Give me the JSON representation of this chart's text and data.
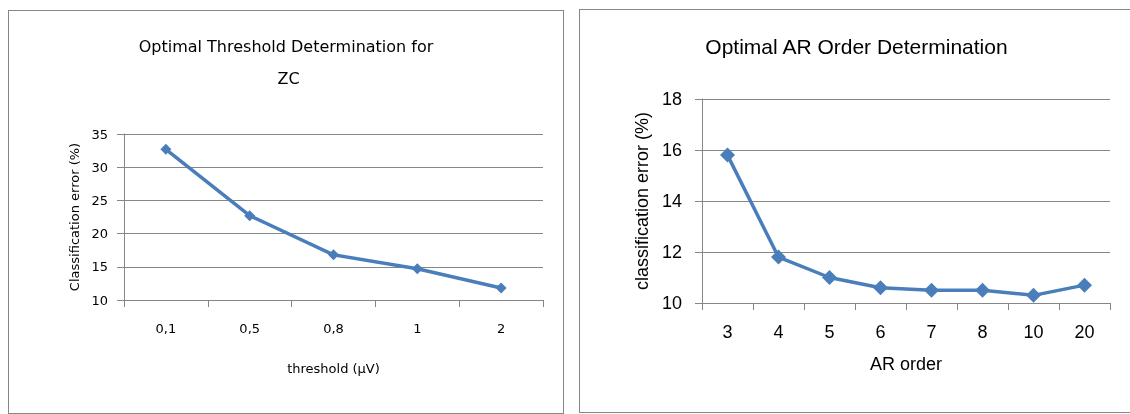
{
  "chart_data": [
    {
      "type": "line",
      "title": "Optimal Threshold Determination for ZC",
      "xlabel": "threshold (µV)",
      "ylabel": "Classification error (%)",
      "categories": [
        "0,1",
        "0,5",
        "0,8",
        "1",
        "2"
      ],
      "series": [
        {
          "color": "#4a7ebb",
          "values": [
            32.7,
            22.7,
            16.8,
            14.7,
            11.8
          ]
        }
      ],
      "ylim": [
        10,
        35
      ],
      "yticks": [
        10,
        15,
        20,
        25,
        30,
        35
      ],
      "grid": "y",
      "marker": "diamond",
      "line_style": "solid"
    },
    {
      "type": "line",
      "title": "Optimal AR Order Determination",
      "xlabel": "AR order",
      "ylabel": "classification error (%)",
      "categories": [
        "3",
        "4",
        "5",
        "6",
        "7",
        "8",
        "10",
        "20"
      ],
      "series": [
        {
          "color": "#4a7ebb",
          "values": [
            15.8,
            11.8,
            11.0,
            10.6,
            10.5,
            10.5,
            10.3,
            10.7
          ]
        }
      ],
      "ylim": [
        10,
        18
      ],
      "yticks": [
        10,
        12,
        14,
        16,
        18
      ],
      "grid": "y",
      "marker": "diamond",
      "line_style": "solid"
    }
  ]
}
